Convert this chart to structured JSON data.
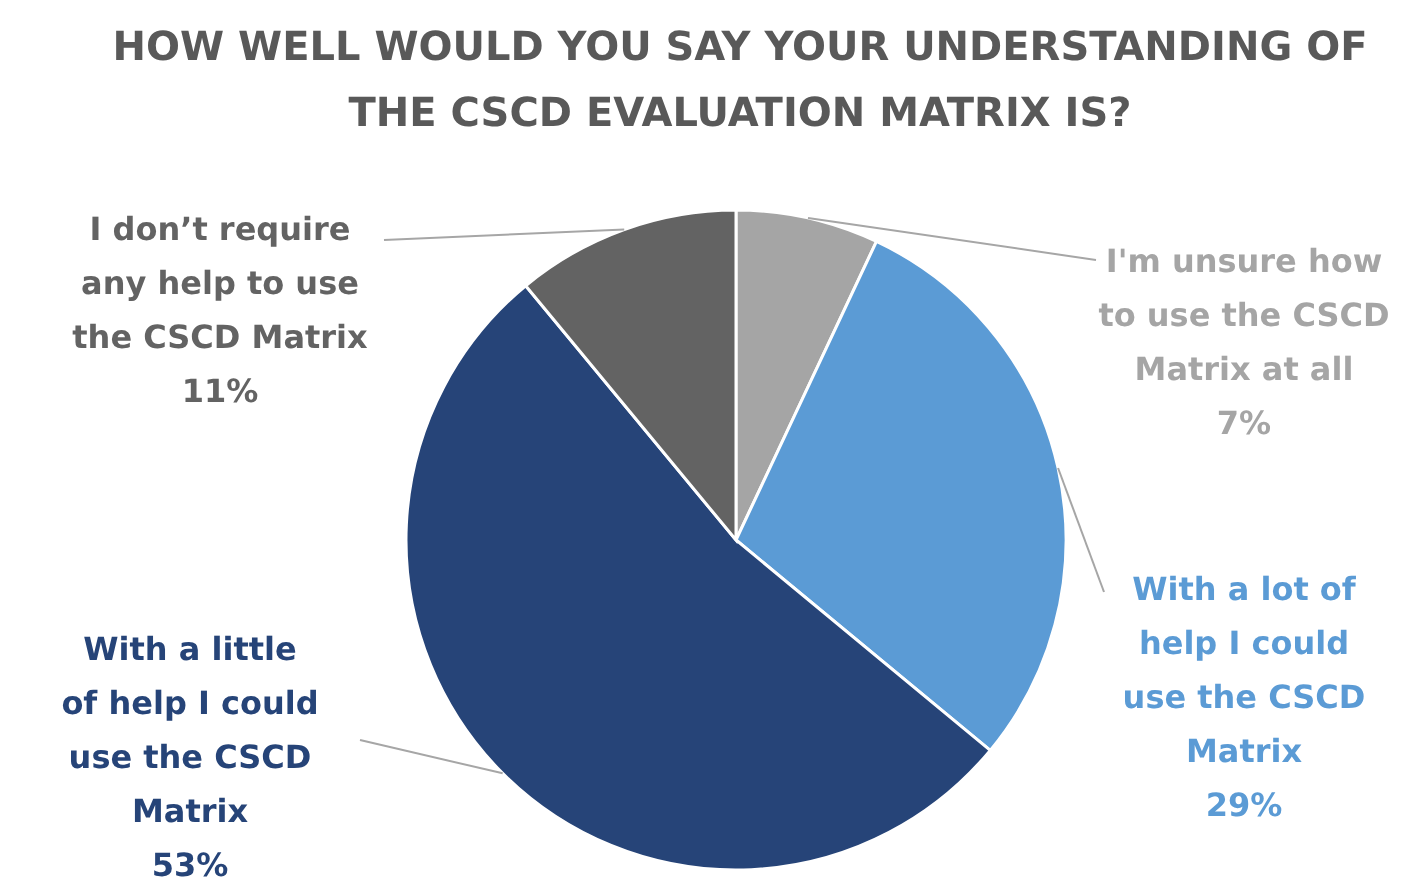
{
  "chart_data": {
    "type": "pie",
    "title": "HOW WELL WOULD YOU SAY YOUR UNDERSTANDING OF THE CSCD EVALUATION MATRIX IS?",
    "categories": [
      "I'm unsure how to use the CSCD Matrix at all",
      "With a lot of help I could use the CSCD Matrix",
      "With a little of help I could use the CSCD Matrix",
      "I don’t require any help to use the CSCD Matrix"
    ],
    "values": [
      7,
      29,
      53,
      11
    ],
    "colors": [
      "#a5a5a5",
      "#5b9bd5",
      "#264478",
      "#636363"
    ],
    "value_labels": [
      "7%",
      "29%",
      "53%",
      "11%"
    ],
    "legend": false
  }
}
